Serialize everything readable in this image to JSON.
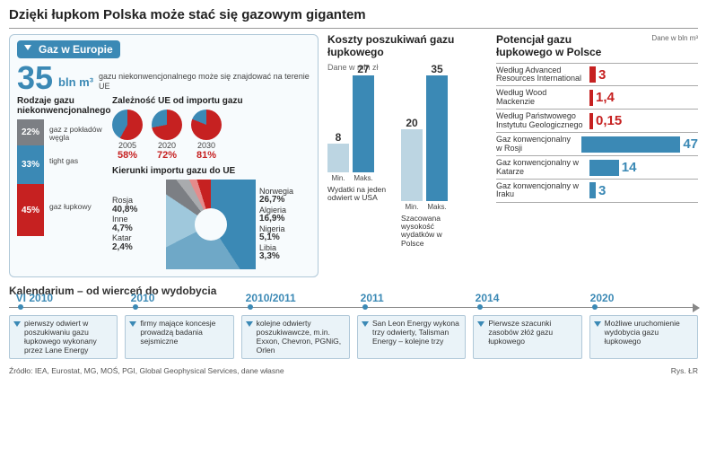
{
  "title": "Dzięki łupkom Polska może stać się gazowym gigantem",
  "colors": {
    "blue": "#3b89b5",
    "lightblue": "#7fb7d4",
    "red": "#c62121",
    "gray": "#7c7f84"
  },
  "card": {
    "header": "Gaz w Europie",
    "big": {
      "value": "35",
      "unit": "bln m³",
      "desc": "gazu niekonwencjonalnego może się znajdować na terenie UE"
    },
    "stacked": {
      "title": "Rodzaje gazu niekonwencjonalnego",
      "segments": [
        {
          "pct": 22,
          "color": "#7c7f84",
          "label": "gaz z pokładów węgla"
        },
        {
          "pct": 33,
          "color": "#3b89b5",
          "label": "tight gas"
        },
        {
          "pct": 45,
          "color": "#c62121",
          "label": "gaz łupkowy"
        }
      ]
    },
    "dependence": {
      "title": "Zależność UE od importu gazu",
      "items": [
        {
          "year": "2005",
          "pct": 58
        },
        {
          "year": "2020",
          "pct": 72
        },
        {
          "year": "2030",
          "pct": 81
        }
      ],
      "red": "#c62121",
      "rest": "#3b89b5"
    },
    "donut": {
      "title": "Kierunki importu gazu do UE",
      "slices": [
        {
          "label": "Rosja",
          "pct": 40.8,
          "color": "#3b89b5"
        },
        {
          "label": "Norwegia",
          "pct": 26.7,
          "color": "#6fa8c7"
        },
        {
          "label": "Algieria",
          "pct": 16.9,
          "color": "#9fc8dc"
        },
        {
          "label": "Nigeria",
          "pct": 5.1,
          "color": "#7c7f84"
        },
        {
          "label": "Libia",
          "pct": 3.3,
          "color": "#a9abae"
        },
        {
          "label": "Katar",
          "pct": 2.4,
          "color": "#e58b8b"
        },
        {
          "label": "Inne",
          "pct": 4.7,
          "color": "#c62121"
        }
      ]
    }
  },
  "mid": {
    "title": "Koszty poszukiwań gazu łupkowego",
    "unit": "Dane w mln zł",
    "max_for_scale": 35,
    "groups": [
      {
        "caption": "Wydatki na jeden odwiert w USA",
        "bars": [
          {
            "label": "Min.",
            "value": 8,
            "color": "#bcd5e2"
          },
          {
            "label": "Maks.",
            "value": 27,
            "color": "#3b89b5"
          }
        ]
      },
      {
        "caption": "Szacowana wysokość wydatków w Polsce",
        "bars": [
          {
            "label": "Min.",
            "value": 20,
            "color": "#bcd5e2"
          },
          {
            "label": "Maks.",
            "value": 35,
            "color": "#3b89b5"
          }
        ]
      }
    ]
  },
  "right": {
    "title": "Potencjał gazu łupkowego w Polsce",
    "unit": "Dane w bln m³",
    "max_for_scale": 47,
    "rows": [
      {
        "group": "red",
        "label": "Według Advanced Resources International",
        "value": 3,
        "display": "3"
      },
      {
        "group": "red",
        "label": "Według Wood Mackenzie",
        "value": 1.4,
        "display": "1,4"
      },
      {
        "group": "red",
        "label": "Według Państwowego Instytutu Geologicznego",
        "value": 0.15,
        "display": "0,15"
      },
      {
        "group": "blue",
        "label": "Gaz konwencjonalny w Rosji",
        "value": 47,
        "display": "47"
      },
      {
        "group": "blue",
        "label": "Gaz konwencjonalny w Katarze",
        "value": 14,
        "display": "14"
      },
      {
        "group": "blue",
        "label": "Gaz konwencjonalny w Iraku",
        "value": 3,
        "display": "3"
      }
    ],
    "colors": {
      "red": "#c62121",
      "blue": "#3b89b5"
    }
  },
  "timeline": {
    "title": "Kalendarium – od wierceń do wydobycia",
    "events": [
      {
        "year": "VI 2010",
        "text": "pierwszy odwiert w poszukiwaniu gazu łupkowego wykonany przez Lane Energy"
      },
      {
        "year": "2010",
        "text": "firmy mające koncesje prowadzą badania sejsmiczne"
      },
      {
        "year": "2010/2011",
        "text": "kolejne odwierty poszukiwawcze, m.in. Exxon, Chevron, PGNiG, Orlen"
      },
      {
        "year": "2011",
        "text": "San Leon Energy wykona trzy odwierty, Talisman Energy – kolejne trzy"
      },
      {
        "year": "2014",
        "text": "Pierwsze szacunki zasobów złóż gazu łupkowego"
      },
      {
        "year": "2020",
        "text": "Możliwe uruchomienie wydobycia gazu łupkowego"
      }
    ]
  },
  "footer": {
    "source": "Źródło: IEA, Eurostat, MG, MOŚ, PGI, Global Geophysical Services, dane własne",
    "credit": "Rys. ŁR"
  }
}
